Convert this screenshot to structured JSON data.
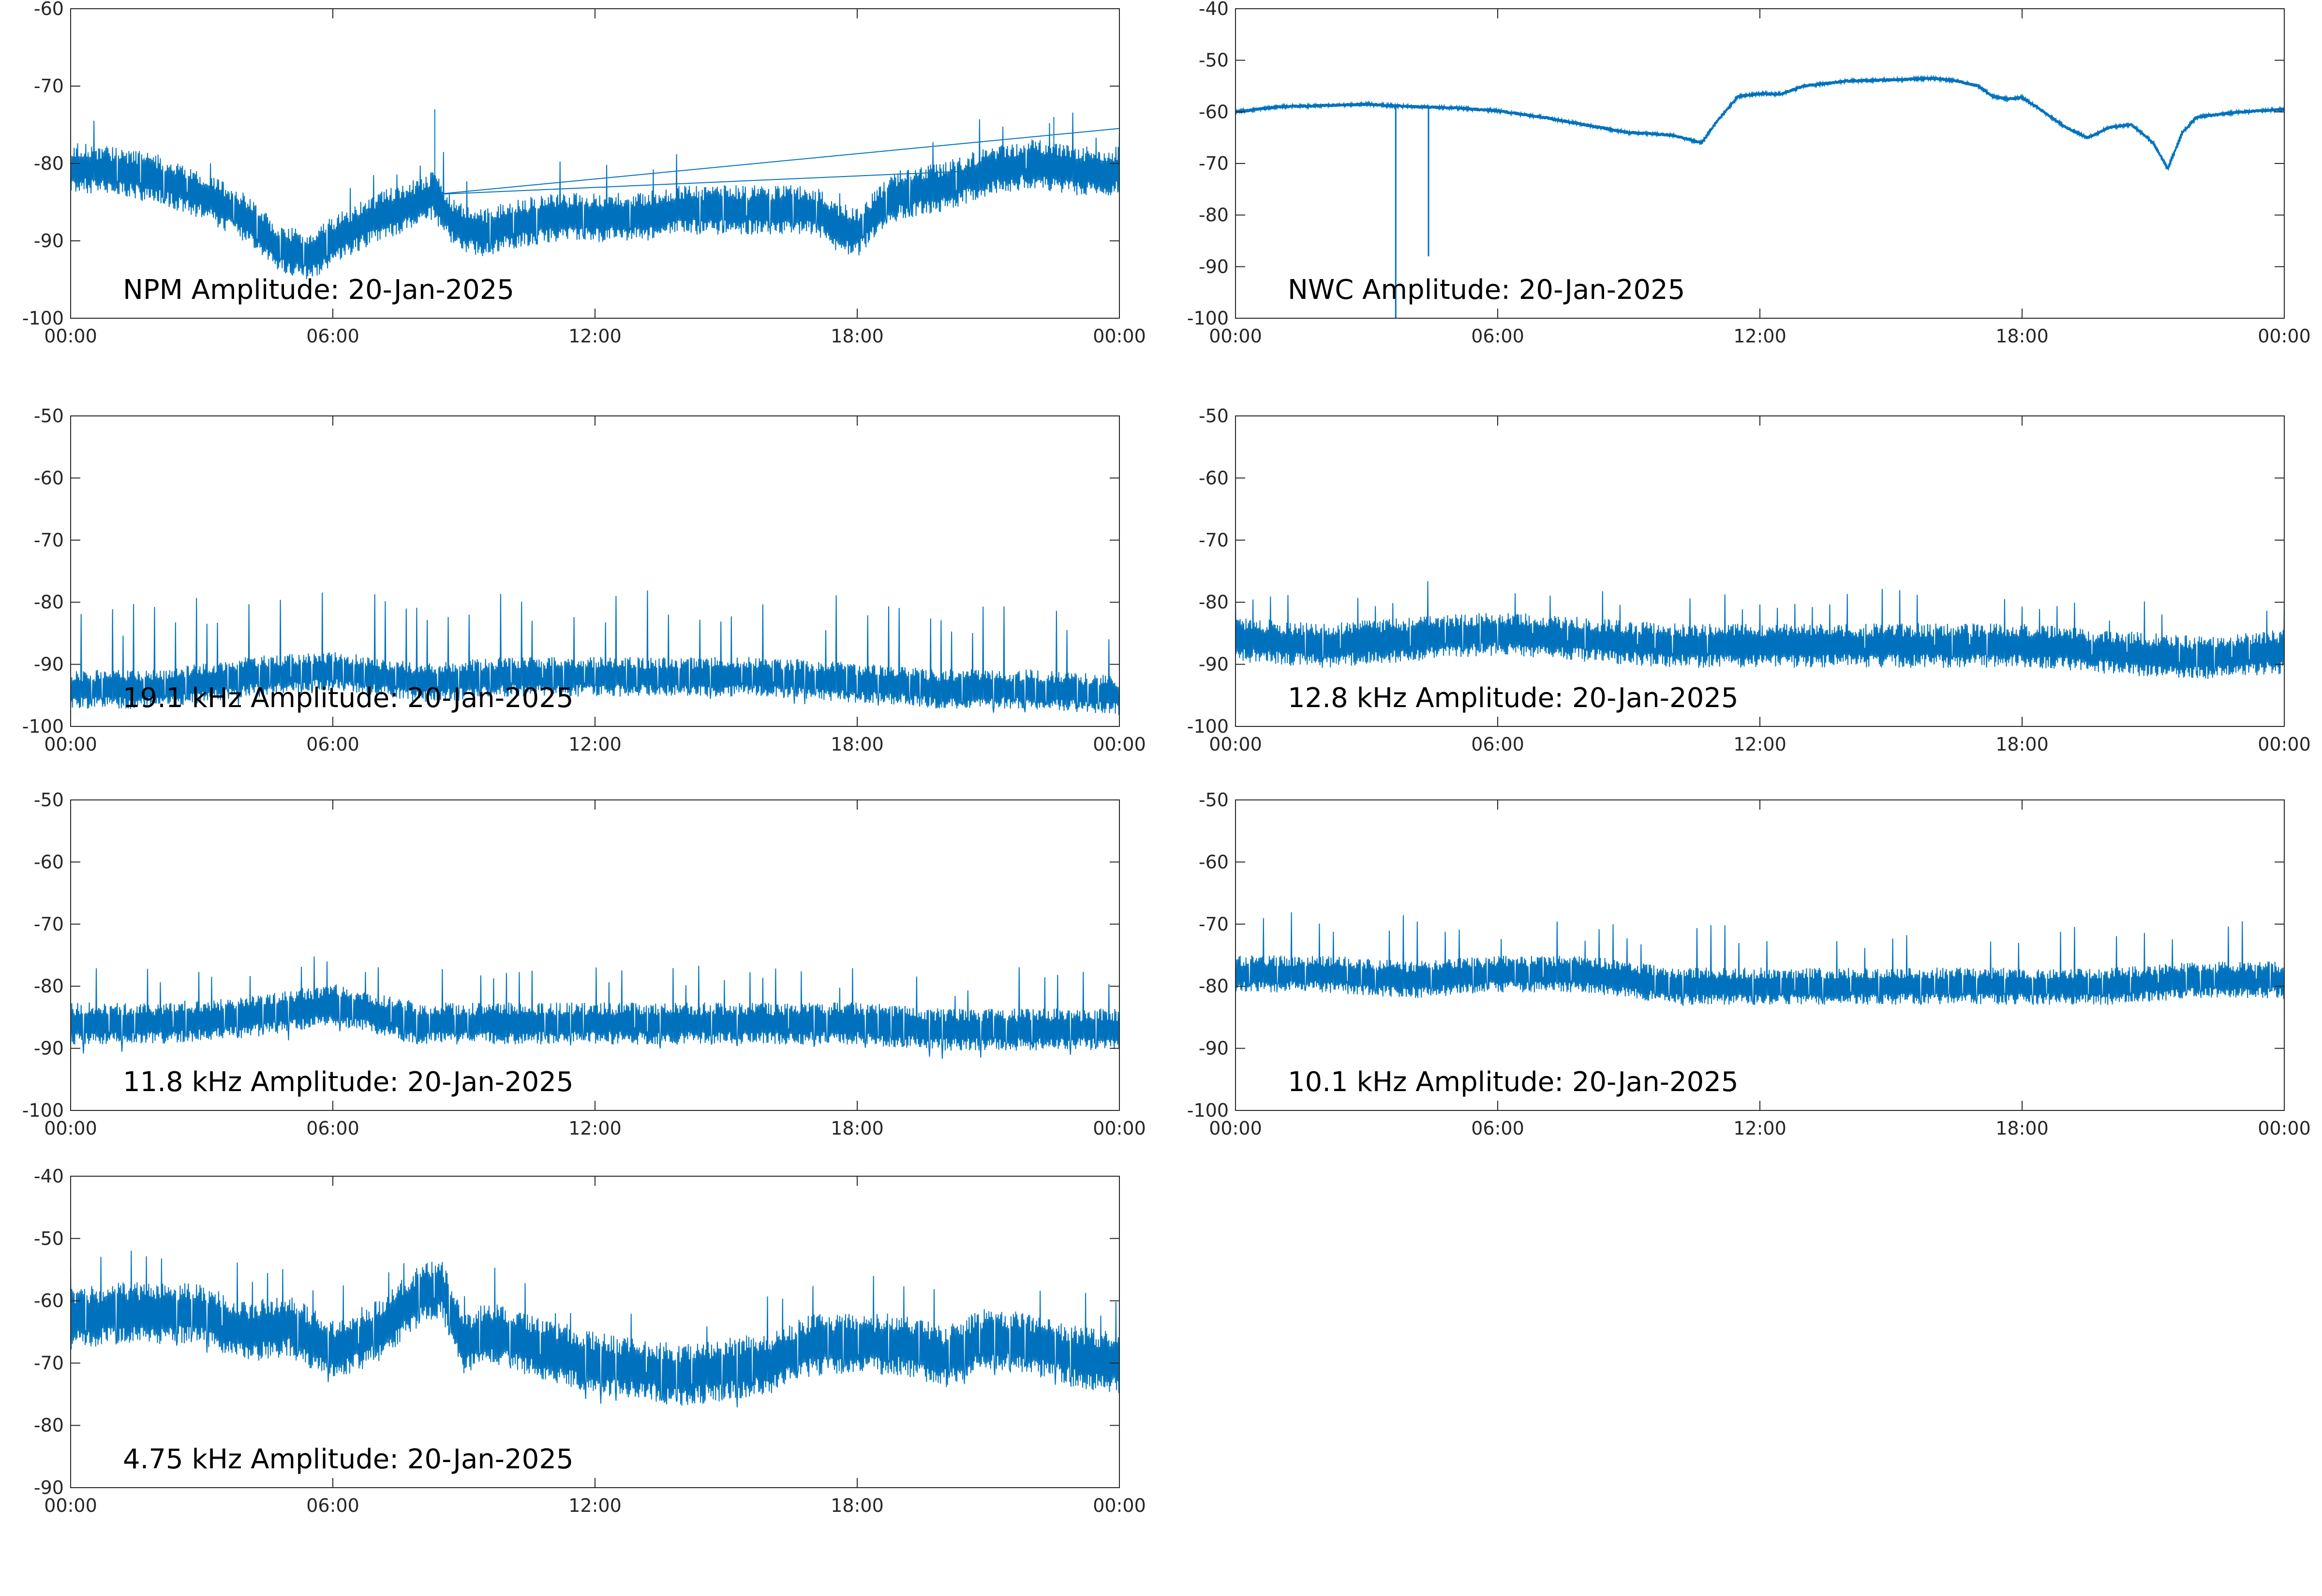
{
  "figure": {
    "background": "#ffffff",
    "line_color": "#0072bd"
  },
  "chart_data": [
    {
      "type": "line",
      "title": "NPM Amplitude: 20-Jan-2025",
      "xlabel": "",
      "ylabel": "",
      "xlim": [
        "00:00",
        "24:00"
      ],
      "ylim": [
        -100,
        -60
      ],
      "yticks": [
        -100,
        -90,
        -80,
        -70,
        -60
      ],
      "xticks": [
        "00:00",
        "06:00",
        "12:00",
        "18:00",
        "00:00"
      ],
      "grid": false,
      "series": [
        {
          "x": [
            "00:00",
            "01:00",
            "02:00",
            "03:00",
            "04:00",
            "04:45",
            "05:30",
            "06:00",
            "07:00",
            "08:00",
            "08:20",
            "08:30",
            "08:50",
            "09:30",
            "10:00",
            "11:00",
            "12:00",
            "13:00",
            "14:00",
            "15:00",
            "16:00",
            "17:00",
            "17:30",
            "18:00",
            "18:30",
            "19:00",
            "20:00",
            "21:00",
            "22:00",
            "23:00",
            "24:00"
          ],
          "values": [
            -80.5,
            -81,
            -82,
            -84,
            -87,
            -91,
            -92,
            -90,
            -87,
            -85,
            -84,
            -86,
            -88,
            -89,
            -88,
            -87,
            -87,
            -87,
            -86,
            -86,
            -86,
            -86,
            -88,
            -89,
            -86,
            -84,
            -83,
            -81,
            -80,
            -81,
            -81
          ]
        }
      ],
      "annotations": [
        "spike near 08:20 to about -73",
        "spike near 22:30 to about -74"
      ]
    },
    {
      "type": "line",
      "title": "NWC Amplitude: 20-Jan-2025",
      "xlabel": "",
      "ylabel": "",
      "xlim": [
        "00:00",
        "24:00"
      ],
      "ylim": [
        -100,
        -40
      ],
      "yticks": [
        -100,
        -90,
        -80,
        -70,
        -60,
        -50,
        -40
      ],
      "xticks": [
        "00:00",
        "06:00",
        "12:00",
        "18:00",
        "00:00"
      ],
      "grid": false,
      "series": [
        {
          "x": [
            "00:00",
            "00:30",
            "01:00",
            "02:00",
            "03:00",
            "04:00",
            "05:00",
            "06:00",
            "07:00",
            "08:00",
            "09:00",
            "10:00",
            "10:40",
            "11:00",
            "11:30",
            "12:00",
            "12:30",
            "13:00",
            "14:00",
            "15:00",
            "16:00",
            "16:30",
            "17:00",
            "17:20",
            "17:40",
            "18:00",
            "18:30",
            "19:00",
            "19:30",
            "20:00",
            "20:30",
            "21:00",
            "21:20",
            "21:40",
            "22:00",
            "23:00",
            "24:00"
          ],
          "values": [
            -60,
            -59.5,
            -59,
            -58.8,
            -58.5,
            -59,
            -59.2,
            -59.8,
            -61,
            -62.5,
            -64,
            -64.5,
            -66,
            -62,
            -57,
            -56.5,
            -56.5,
            -55,
            -54,
            -53.8,
            -53.5,
            -54,
            -55,
            -57,
            -57.5,
            -57.2,
            -60,
            -63,
            -65,
            -63,
            -62.5,
            -66,
            -71,
            -64,
            -61,
            -60,
            -59.5
          ]
        }
      ],
      "annotations": [
        "dip near 03:40 to -100",
        "dip near 04:25 to about -88"
      ]
    },
    {
      "type": "line",
      "title": "19.1 kHz Amplitude: 20-Jan-2025",
      "xlabel": "",
      "ylabel": "",
      "xlim": [
        "00:00",
        "24:00"
      ],
      "ylim": [
        -100,
        -50
      ],
      "yticks": [
        -100,
        -90,
        -80,
        -70,
        -60,
        -50
      ],
      "xticks": [
        "00:00",
        "06:00",
        "12:00",
        "18:00",
        "00:00"
      ],
      "grid": false,
      "series": [
        {
          "x": [
            "00:00",
            "02:00",
            "04:00",
            "06:00",
            "08:00",
            "10:00",
            "12:00",
            "14:00",
            "16:00",
            "18:00",
            "20:00",
            "22:00",
            "24:00"
          ],
          "values": [
            -94,
            -94,
            -92,
            -91,
            -93,
            -92,
            -92,
            -92,
            -92,
            -93,
            -94,
            -94,
            -95
          ]
        }
      ]
    },
    {
      "type": "line",
      "title": "12.8 kHz Amplitude: 20-Jan-2025",
      "xlabel": "",
      "ylabel": "",
      "xlim": [
        "00:00",
        "24:00"
      ],
      "ylim": [
        -100,
        -50
      ],
      "yticks": [
        -100,
        -90,
        -80,
        -70,
        -60,
        -50
      ],
      "xticks": [
        "00:00",
        "06:00",
        "12:00",
        "18:00",
        "00:00"
      ],
      "grid": false,
      "series": [
        {
          "x": [
            "00:00",
            "02:00",
            "04:00",
            "06:00",
            "08:00",
            "10:00",
            "12:00",
            "14:00",
            "16:00",
            "18:00",
            "20:00",
            "22:00",
            "24:00"
          ],
          "values": [
            -86,
            -87,
            -86,
            -85,
            -86,
            -87,
            -87,
            -87,
            -87,
            -87,
            -88,
            -89,
            -88
          ]
        }
      ]
    },
    {
      "type": "line",
      "title": "11.8 kHz Amplitude: 20-Jan-2025",
      "xlabel": "",
      "ylabel": "",
      "xlim": [
        "00:00",
        "24:00"
      ],
      "ylim": [
        -100,
        -50
      ],
      "yticks": [
        -100,
        -90,
        -80,
        -70,
        -60,
        -50
      ],
      "xticks": [
        "00:00",
        "06:00",
        "12:00",
        "18:00",
        "00:00"
      ],
      "grid": false,
      "series": [
        {
          "x": [
            "00:00",
            "02:00",
            "04:00",
            "06:00",
            "08:00",
            "10:00",
            "12:00",
            "14:00",
            "16:00",
            "18:00",
            "20:00",
            "22:00",
            "24:00"
          ],
          "values": [
            -86,
            -86,
            -85,
            -83,
            -86,
            -86,
            -86,
            -86,
            -86,
            -86,
            -87,
            -87,
            -87
          ]
        }
      ]
    },
    {
      "type": "line",
      "title": "10.1 kHz Amplitude: 20-Jan-2025",
      "xlabel": "",
      "ylabel": "",
      "xlim": [
        "00:00",
        "24:00"
      ],
      "ylim": [
        -100,
        -50
      ],
      "yticks": [
        -100,
        -90,
        -80,
        -70,
        -60,
        -50
      ],
      "xticks": [
        "00:00",
        "06:00",
        "12:00",
        "18:00",
        "00:00"
      ],
      "grid": false,
      "series": [
        {
          "x": [
            "00:00",
            "02:00",
            "04:00",
            "06:00",
            "08:00",
            "10:00",
            "12:00",
            "14:00",
            "16:00",
            "18:00",
            "20:00",
            "22:00",
            "24:00"
          ],
          "values": [
            -78,
            -78,
            -79,
            -78,
            -78,
            -80,
            -80,
            -80,
            -80,
            -80,
            -80,
            -79,
            -79
          ]
        }
      ]
    },
    {
      "type": "line",
      "title": "4.75 kHz Amplitude: 20-Jan-2025",
      "xlabel": "",
      "ylabel": "",
      "xlim": [
        "00:00",
        "24:00"
      ],
      "ylim": [
        -90,
        -40
      ],
      "yticks": [
        -90,
        -80,
        -70,
        -60,
        -50,
        -40
      ],
      "xticks": [
        "00:00",
        "06:00",
        "12:00",
        "18:00",
        "00:00"
      ],
      "grid": false,
      "series": [
        {
          "x": [
            "00:00",
            "01:00",
            "02:00",
            "03:00",
            "04:00",
            "05:00",
            "06:00",
            "07:00",
            "08:00",
            "08:30",
            "09:00",
            "09:30",
            "10:00",
            "11:00",
            "12:00",
            "13:00",
            "14:00",
            "15:00",
            "16:00",
            "17:00",
            "18:00",
            "19:00",
            "20:00",
            "21:00",
            "22:00",
            "23:00",
            "24:00"
          ],
          "values": [
            -63,
            -62,
            -62,
            -62,
            -65,
            -64,
            -68,
            -65,
            -59,
            -58,
            -67,
            -65,
            -66,
            -68,
            -70,
            -71,
            -72,
            -71,
            -70,
            -67,
            -67,
            -67,
            -69,
            -66,
            -67,
            -69,
            -70
          ]
        }
      ]
    }
  ]
}
